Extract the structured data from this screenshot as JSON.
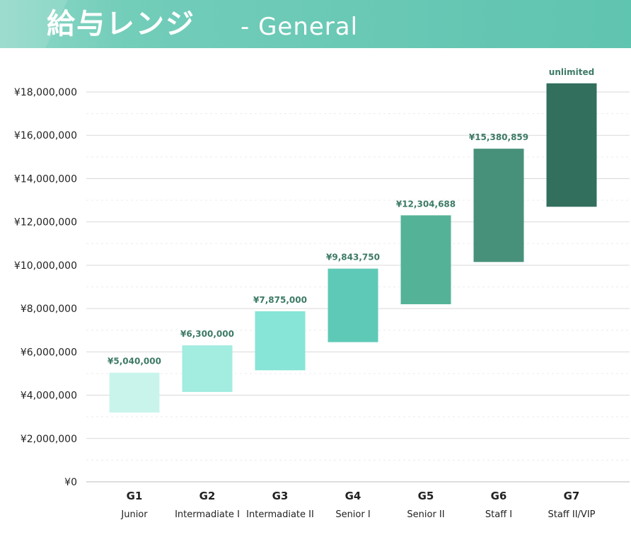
{
  "header": {
    "title": "給与レンジ",
    "subtitle": "- General"
  },
  "chart_data": {
    "type": "bar",
    "subtype": "floating-range",
    "categories": [
      "G1",
      "G2",
      "G3",
      "G4",
      "G5",
      "G6",
      "G7"
    ],
    "category_subtitles": [
      "Junior",
      "Intermadiate I",
      "Intermadiate II",
      "Senior I",
      "Senior II",
      "Staff I",
      "Staff II/VIP"
    ],
    "ranges": [
      {
        "min": 3200000,
        "max": 5040000
      },
      {
        "min": 4150000,
        "max": 6300000
      },
      {
        "min": 5150000,
        "max": 7875000
      },
      {
        "min": 6450000,
        "max": 9843750
      },
      {
        "min": 8200000,
        "max": 12304688
      },
      {
        "min": 10150000,
        "max": 15380859
      },
      {
        "min": 12700000,
        "max": 18400000
      }
    ],
    "value_labels": [
      "¥5,040,000",
      "¥6,300,000",
      "¥7,875,000",
      "¥9,843,750",
      "¥12,304,688",
      "¥15,380,859",
      "unlimited"
    ],
    "colors": [
      "#c9f4ec",
      "#a2ece0",
      "#86e5d6",
      "#5fc9b7",
      "#54b397",
      "#47917a",
      "#326f5d"
    ],
    "label_color": "#3d7a66",
    "ylim": [
      0,
      18000000
    ],
    "yticks": [
      0,
      2000000,
      4000000,
      6000000,
      8000000,
      10000000,
      12000000,
      14000000,
      16000000,
      18000000
    ],
    "ytick_labels": [
      "¥0",
      "¥2,000,000",
      "¥4,000,000",
      "¥6,000,000",
      "¥8,000,000",
      "¥10,000,000",
      "¥12,000,000",
      "¥14,000,000",
      "¥16,000,000",
      "¥18,000,000"
    ],
    "grid": true,
    "legend": "none"
  }
}
